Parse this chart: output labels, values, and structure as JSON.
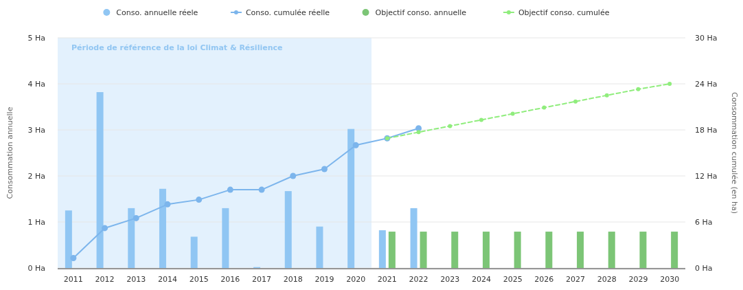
{
  "chart_data": {
    "type": "bar",
    "categories": [
      "2011",
      "2012",
      "2013",
      "2014",
      "2015",
      "2016",
      "2017",
      "2018",
      "2019",
      "2020",
      "2021",
      "2022",
      "2023",
      "2024",
      "2025",
      "2026",
      "2027",
      "2028",
      "2029",
      "2030"
    ],
    "series": [
      {
        "name": "Conso. annuelle réele",
        "color": "#90c6f3",
        "values": [
          1.25,
          3.82,
          1.3,
          1.72,
          0.68,
          1.3,
          0.02,
          1.67,
          0.9,
          3.02,
          0.82,
          1.3,
          null,
          null,
          null,
          null,
          null,
          null,
          null,
          null
        ]
      },
      {
        "name": "Conso. cumulée réelle",
        "type": "line",
        "axis": "y2",
        "color": "#7cb5ec",
        "marker": "circle",
        "line_style": "solid",
        "values": [
          1.3,
          5.2,
          6.5,
          8.3,
          8.9,
          10.2,
          10.2,
          12.0,
          12.9,
          16.0,
          16.9,
          18.2,
          null,
          null,
          null,
          null,
          null,
          null,
          null,
          null
        ]
      },
      {
        "name": "Objectif conso. annuelle",
        "color": "#7cc576",
        "values": [
          null,
          null,
          null,
          null,
          null,
          null,
          null,
          null,
          null,
          null,
          0.79,
          0.79,
          0.79,
          0.79,
          0.79,
          0.79,
          0.79,
          0.79,
          0.79,
          0.79
        ]
      },
      {
        "name": "Objectif conso. cumulée",
        "type": "line",
        "axis": "y2",
        "color": "#90ed7d",
        "marker": "circle",
        "line_style": "dashed",
        "values": [
          null,
          null,
          null,
          null,
          null,
          null,
          null,
          null,
          null,
          null,
          16.9,
          17.7,
          18.5,
          19.3,
          20.1,
          20.9,
          21.7,
          22.5,
          23.3,
          24.0
        ]
      }
    ],
    "ylabel": "Consommation annuelle",
    "y2label": "Consommation cumulée (en ha)",
    "ylim": [
      0,
      5
    ],
    "yticks": [
      {
        "value": 0,
        "label": "0 Ha"
      },
      {
        "value": 1,
        "label": "1 Ha"
      },
      {
        "value": 2,
        "label": "2 Ha"
      },
      {
        "value": 3,
        "label": "3 Ha"
      },
      {
        "value": 4,
        "label": "4 Ha"
      },
      {
        "value": 5,
        "label": "5 Ha"
      }
    ],
    "y2lim": [
      0,
      30
    ],
    "y2ticks": [
      {
        "value": 0,
        "label": "0 Ha"
      },
      {
        "value": 6,
        "label": "6 Ha"
      },
      {
        "value": 12,
        "label": "12 Ha"
      },
      {
        "value": 18,
        "label": "18 Ha"
      },
      {
        "value": 24,
        "label": "24 Ha"
      },
      {
        "value": 30,
        "label": "30 Ha"
      }
    ],
    "bands": [
      {
        "axis": "x",
        "from": "2011",
        "to": "2020",
        "label": "Période de référence de la loi Climat & Résilience",
        "color": "#e3f1fd"
      }
    ],
    "grid": "y",
    "legend": "top"
  }
}
